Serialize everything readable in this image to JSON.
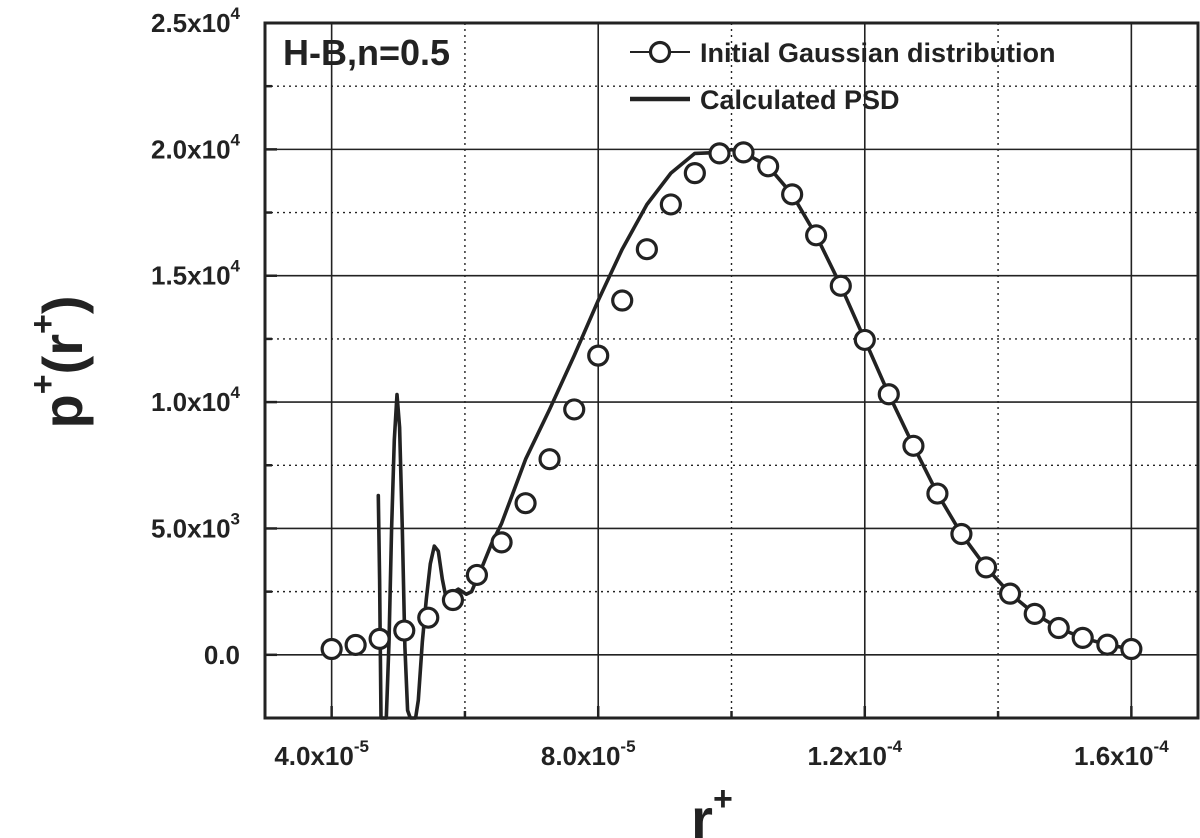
{
  "chart_data": {
    "type": "line",
    "title": "",
    "annotation": "H-B,n=0.5",
    "xlabel": {
      "base": "r",
      "sup": "+"
    },
    "ylabel": {
      "base": "p",
      "sup1": "+",
      "mid": "(r",
      "sup2": "+",
      "end": ")"
    },
    "xlim": [
      3e-05,
      0.00017
    ],
    "ylim": [
      -2500,
      25000
    ],
    "x_ticks": [
      {
        "value": 4e-05,
        "mant": "4.0x10",
        "exp": "-5"
      },
      {
        "value": 8e-05,
        "mant": "8.0x10",
        "exp": "-5"
      },
      {
        "value": 0.00012,
        "mant": "1.2x10",
        "exp": "-4"
      },
      {
        "value": 0.00016,
        "mant": "1.6x10",
        "exp": "-4"
      }
    ],
    "y_ticks": [
      {
        "value": 0,
        "mant": "0.0",
        "exp": ""
      },
      {
        "value": 5000,
        "mant": "5.0x10",
        "exp": "3"
      },
      {
        "value": 10000,
        "mant": "1.0x10",
        "exp": "4"
      },
      {
        "value": 15000,
        "mant": "1.5x10",
        "exp": "4"
      },
      {
        "value": 20000,
        "mant": "2.0x10",
        "exp": "4"
      },
      {
        "value": 25000,
        "mant": "2.5x10",
        "exp": "4"
      }
    ],
    "x_grid": [
      4e-05,
      6e-05,
      8e-05,
      0.0001,
      0.00012,
      0.00014,
      0.00016
    ],
    "y_grid": [
      -2500,
      0,
      2500,
      5000,
      7500,
      10000,
      12500,
      15000,
      17500,
      20000,
      22500,
      25000
    ],
    "grid": true,
    "legend_position": "top-right",
    "series": [
      {
        "name": "Initial Gaussian distribution",
        "style": "markers",
        "x": [
          4e-05,
          4.36e-05,
          4.72e-05,
          5.09e-05,
          5.45e-05,
          5.82e-05,
          6.18e-05,
          6.55e-05,
          6.91e-05,
          7.27e-05,
          7.64e-05,
          8e-05,
          8.36e-05,
          8.73e-05,
          9.09e-05,
          9.45e-05,
          9.82e-05,
          0.0001018,
          0.0001055,
          0.0001091,
          0.0001127,
          0.0001164,
          0.00012,
          0.0001236,
          0.0001273,
          0.0001309,
          0.0001345,
          0.0001382,
          0.0001418,
          0.0001455,
          0.0001491,
          0.0001527,
          0.0001564,
          0.00016
        ],
        "y": [
          230,
          390,
          630,
          960,
          1470,
          2170,
          3160,
          4450,
          6000,
          7740,
          9710,
          11840,
          14020,
          16050,
          17820,
          19060,
          19840,
          19880,
          19330,
          18220,
          16600,
          14600,
          12460,
          10310,
          8270,
          6380,
          4780,
          3460,
          2420,
          1620,
          1060,
          670,
          400,
          230
        ]
      },
      {
        "name": "Calculated PSD",
        "style": "line",
        "x": [
          4.7e-05,
          4.72e-05,
          4.74e-05,
          4.76e-05,
          4.78e-05,
          4.82e-05,
          4.86e-05,
          4.9e-05,
          4.94e-05,
          4.98e-05,
          5.02e-05,
          5.06e-05,
          5.1e-05,
          5.14e-05,
          5.18e-05,
          5.22e-05,
          5.26e-05,
          5.3e-05,
          5.36e-05,
          5.42e-05,
          5.48e-05,
          5.54e-05,
          5.6e-05,
          5.66e-05,
          5.72e-05,
          5.78e-05,
          5.84e-05,
          5.9e-05,
          5.96e-05,
          6.02e-05,
          6.1e-05,
          6.18e-05,
          6.26e-05,
          6.4e-05,
          6.55e-05,
          6.91e-05,
          7.27e-05,
          7.64e-05,
          8e-05,
          8.36e-05,
          8.73e-05,
          9.09e-05,
          9.45e-05,
          9.82e-05,
          0.0001,
          0.0001018,
          0.0001055,
          0.0001091,
          0.0001127,
          0.0001164,
          0.00012,
          0.0001236,
          0.0001273,
          0.0001309,
          0.0001345,
          0.0001382,
          0.0001418,
          0.0001455,
          0.0001491,
          0.0001527,
          0.0001564,
          0.00016
        ],
        "y": [
          6300,
          3000,
          -2600,
          -2600,
          -2600,
          -2600,
          500,
          5000,
          8500,
          10300,
          9000,
          5000,
          300,
          -2200,
          -2600,
          -2600,
          -2600,
          -1800,
          500,
          2200,
          3600,
          4300,
          4100,
          3000,
          2200,
          2100,
          2500,
          2600,
          2500,
          2400,
          2500,
          3000,
          3500,
          4400,
          5200,
          7740,
          9710,
          11840,
          14020,
          16050,
          17820,
          19060,
          19840,
          19880,
          19990,
          19880,
          19330,
          18220,
          16600,
          14600,
          12460,
          10310,
          8270,
          6380,
          4780,
          3460,
          2420,
          1620,
          1060,
          670,
          400,
          230
        ]
      }
    ]
  }
}
